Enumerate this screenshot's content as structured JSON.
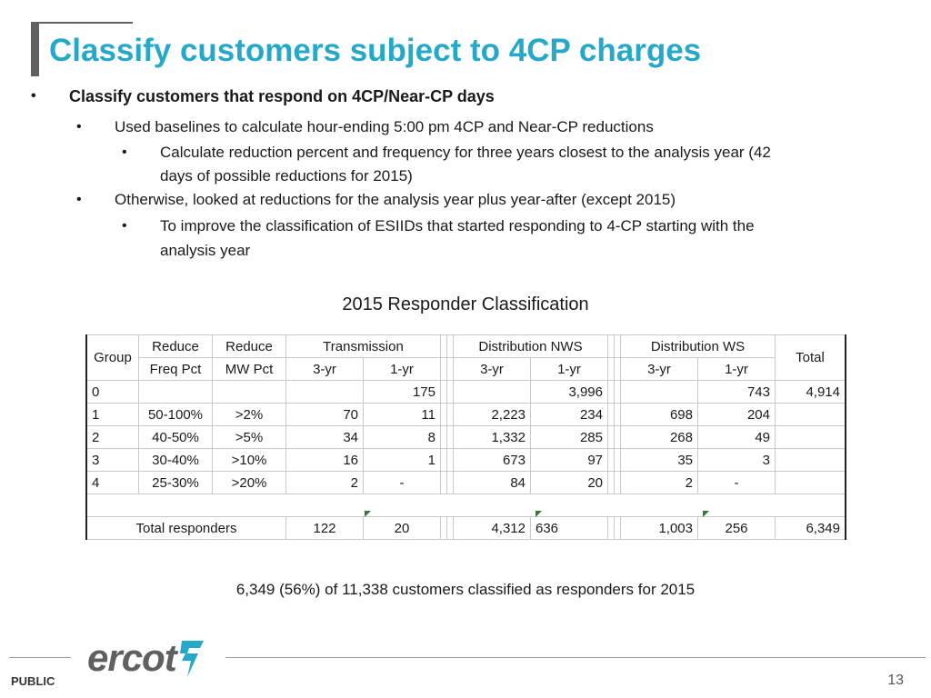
{
  "title": "Classify customers subject to 4CP charges",
  "bullets": {
    "l1": "Classify customers that respond on 4CP/Near-CP days",
    "l2a": "Used baselines to calculate hour-ending 5:00 pm 4CP and Near-CP reductions",
    "l3a_line1": "Calculate reduction percent and frequency for three years closest to the analysis year (42",
    "l3a_line2": "days of possible reductions for 2015)",
    "l2b": "Otherwise, looked at reductions for the analysis year plus year-after (except 2015)",
    "l3b_line1": "To improve the classification of ESIIDs that started responding to 4-CP starting with the",
    "l3b_line2": "analysis year"
  },
  "table": {
    "caption": "2015 Responder Classification",
    "headers": {
      "group": "Group",
      "reduce_freq_1": "Reduce",
      "reduce_freq_2": "Freq Pct",
      "reduce_mw_1": "Reduce",
      "reduce_mw_2": "MW Pct",
      "transmission": "Transmission",
      "dist_nws": "Distribution NWS",
      "dist_ws": "Distribution WS",
      "total": "Total",
      "yr3": "3-yr",
      "yr1": "1-yr"
    },
    "rows": [
      {
        "group": "0",
        "freq": "",
        "mw": "",
        "t3": "",
        "t1": "175",
        "n3": "",
        "n1": "3,996",
        "w3": "",
        "w1": "743",
        "total": "4,914"
      },
      {
        "group": "1",
        "freq": "50-100%",
        "mw": ">2%",
        "t3": "70",
        "t1": "11",
        "n3": "2,223",
        "n1": "234",
        "w3": "698",
        "w1": "204",
        "total": ""
      },
      {
        "group": "2",
        "freq": "40-50%",
        "mw": ">5%",
        "t3": "34",
        "t1": "8",
        "n3": "1,332",
        "n1": "285",
        "w3": "268",
        "w1": "49",
        "total": ""
      },
      {
        "group": "3",
        "freq": "30-40%",
        "mw": ">10%",
        "t3": "16",
        "t1": "1",
        "n3": "673",
        "n1": "97",
        "w3": "35",
        "w1": "3",
        "total": ""
      },
      {
        "group": "4",
        "freq": "25-30%",
        "mw": ">20%",
        "t3": "2",
        "t1": "-",
        "n3": "84",
        "n1": "20",
        "w3": "2",
        "w1": "-",
        "total": ""
      }
    ],
    "totals": {
      "label": "Total responders",
      "t3": "122",
      "t1": "20",
      "n3": "4,312",
      "n1": "636",
      "w3": "1,003",
      "w1": "256",
      "total": "6,349"
    }
  },
  "summary": "6,349 (56%) of 11,338 customers classified as responders for 2015",
  "footer": {
    "logo": "ercot",
    "classification": "PUBLIC",
    "page_number": "13"
  },
  "colors": {
    "title": "#26a9c8",
    "bar": "#5f6061",
    "logo": "#5f6061",
    "logo_mark": "#26a9c8"
  }
}
